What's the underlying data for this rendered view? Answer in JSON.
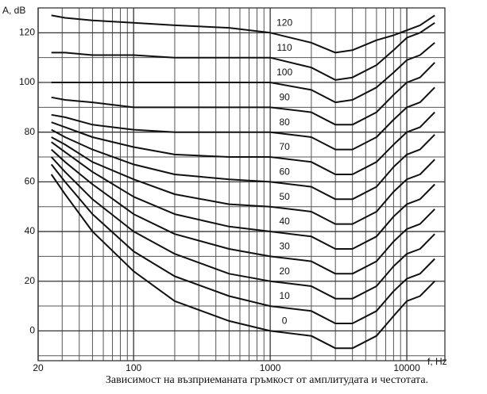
{
  "chart_data": {
    "type": "line",
    "y_label": "A, dB",
    "x_label": "f, Hz",
    "caption": "Зависимост на възприеманата гръмкост от амплитудата и честотата.",
    "x_scale": "log",
    "grid": true,
    "color": "#111111",
    "xlim": [
      20,
      19000
    ],
    "xticks": [
      20,
      100,
      1000,
      10000
    ],
    "xminor_ticks": [
      30,
      40,
      50,
      60,
      70,
      80,
      90,
      200,
      300,
      400,
      500,
      600,
      700,
      800,
      900,
      2000,
      3000,
      4000,
      5000,
      6000,
      7000,
      8000,
      9000
    ],
    "ylim": [
      -12,
      130
    ],
    "yticks": [
      0,
      20,
      40,
      60,
      80,
      100,
      120
    ],
    "yminor_ticks": [
      -10,
      10,
      30,
      50,
      70,
      90,
      110,
      130
    ],
    "x": [
      25,
      31.5,
      50,
      100,
      200,
      500,
      1000,
      2000,
      3000,
      4000,
      6000,
      8000,
      10000,
      12500,
      16000
    ],
    "series": [
      {
        "name": "0",
        "values": [
          63,
          55,
          40,
          24,
          12,
          4,
          0,
          -2,
          -7,
          -7,
          -2,
          6,
          12,
          14,
          20
        ]
      },
      {
        "name": "10",
        "values": [
          67,
          60,
          47,
          32,
          22,
          14,
          10,
          8,
          3,
          3,
          8,
          16,
          21,
          23,
          29
        ]
      },
      {
        "name": "20",
        "values": [
          70,
          64,
          53,
          40,
          31,
          23,
          20,
          18,
          13,
          13,
          18,
          26,
          31,
          33,
          39
        ]
      },
      {
        "name": "30",
        "values": [
          73,
          68,
          59,
          47,
          39,
          33,
          30,
          28,
          23,
          23,
          28,
          36,
          41,
          43,
          49
        ]
      },
      {
        "name": "40",
        "values": [
          76,
          72,
          64,
          54,
          47,
          42,
          40,
          38,
          33,
          33,
          38,
          46,
          51,
          53,
          59
        ]
      },
      {
        "name": "50",
        "values": [
          78,
          75,
          68,
          61,
          55,
          51,
          50,
          48,
          43,
          43,
          48,
          56,
          61,
          63,
          69
        ]
      },
      {
        "name": "60",
        "values": [
          81,
          78,
          73,
          67,
          63,
          61,
          60,
          58,
          53,
          53,
          58,
          66,
          71,
          73,
          79
        ]
      },
      {
        "name": "70",
        "values": [
          84,
          82,
          78,
          74,
          71,
          70,
          70,
          68,
          63,
          63,
          68,
          75,
          80,
          82,
          88
        ]
      },
      {
        "name": "80",
        "values": [
          87,
          86,
          83,
          81,
          80,
          80,
          80,
          78,
          73,
          73,
          78,
          85,
          90,
          92,
          98
        ]
      },
      {
        "name": "90",
        "values": [
          94,
          93,
          92,
          90,
          90,
          90,
          90,
          88,
          83,
          83,
          88,
          95,
          100,
          102,
          108
        ]
      },
      {
        "name": "100",
        "values": [
          100,
          100,
          100,
          100,
          100,
          100,
          100,
          97,
          92,
          93,
          98,
          104,
          109,
          111,
          116
        ]
      },
      {
        "name": "110",
        "values": [
          112,
          112,
          111,
          111,
          110,
          110,
          110,
          106,
          101,
          102,
          107,
          113,
          118,
          120,
          124
        ]
      },
      {
        "name": "120",
        "values": [
          127,
          126,
          125,
          124,
          123,
          122,
          120,
          116,
          112,
          113,
          117,
          119,
          121,
          123,
          127
        ]
      }
    ]
  }
}
